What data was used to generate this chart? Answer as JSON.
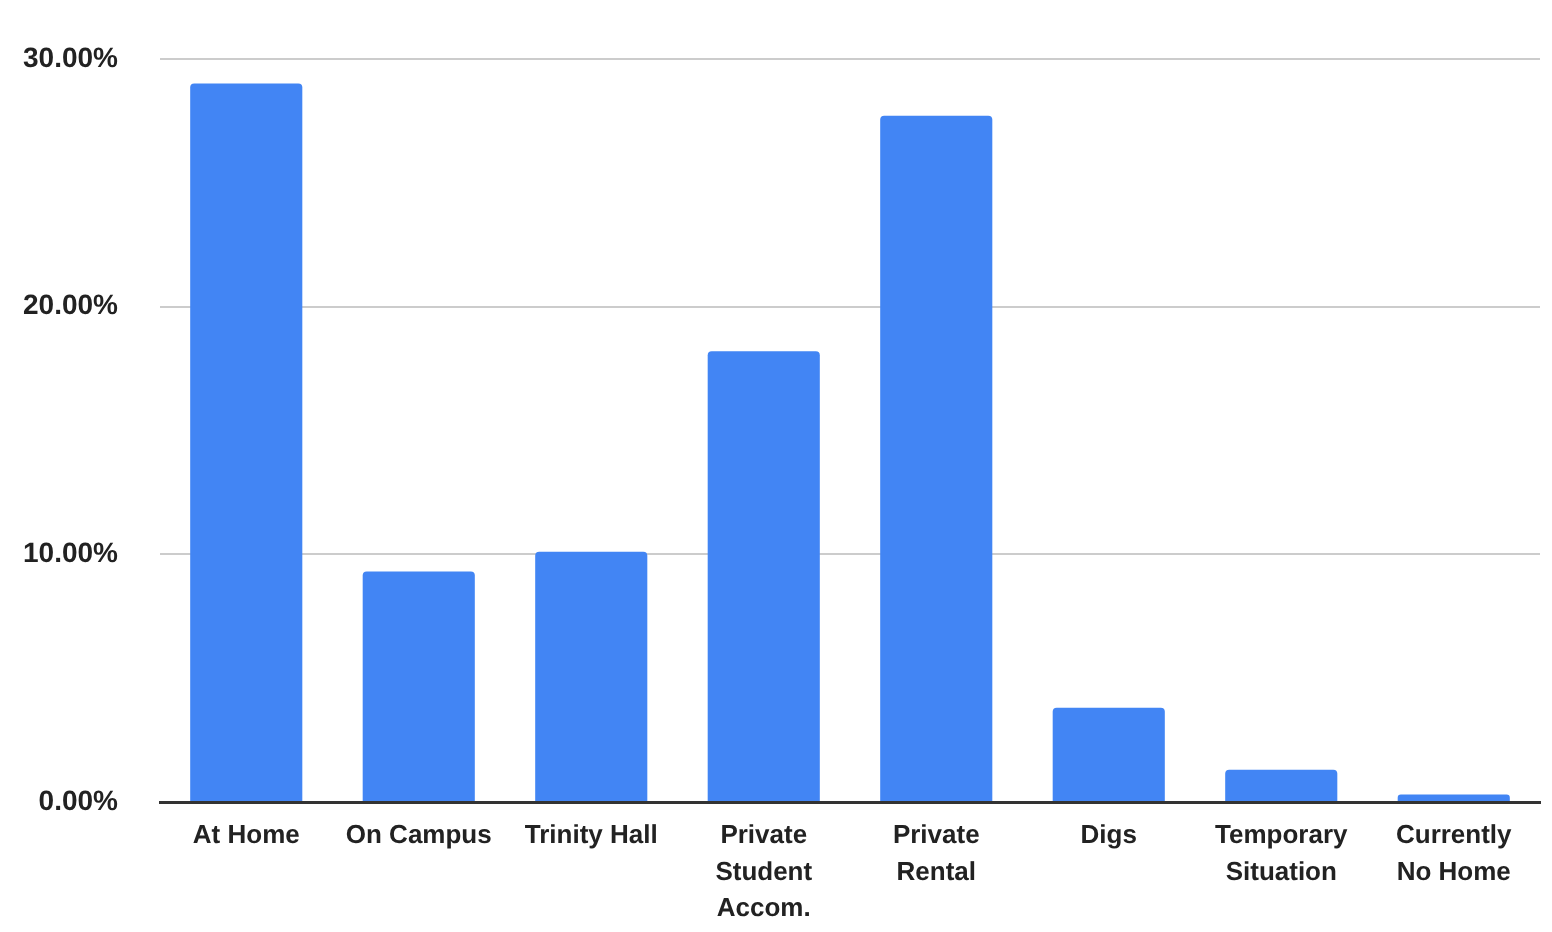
{
  "chart_data": {
    "type": "bar",
    "categories": [
      "At Home",
      "On Campus",
      "Trinity Hall",
      "Private Student Accom.",
      "Private Rental",
      "Digs",
      "Temporary Situation",
      "Currently No Home"
    ],
    "values": [
      29.0,
      9.3,
      10.1,
      18.2,
      27.7,
      3.8,
      1.3,
      0.3
    ],
    "color": "#4285f4",
    "ylim": [
      0,
      30
    ],
    "yticks": [
      {
        "value": 0,
        "label": "0.00%"
      },
      {
        "value": 10,
        "label": "10.00%"
      },
      {
        "value": 20,
        "label": "20.00%"
      },
      {
        "value": 30,
        "label": "30.00%"
      }
    ],
    "grid": "y",
    "legend": false
  }
}
